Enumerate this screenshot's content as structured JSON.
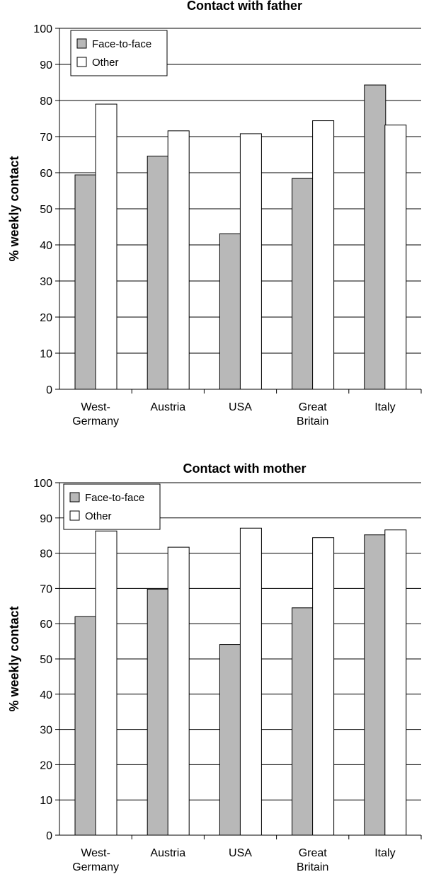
{
  "chart_data": [
    {
      "type": "bar",
      "title": "Contact with father",
      "ylabel": "% weekly contact",
      "xlabel": "",
      "ylim": [
        0,
        100
      ],
      "yticks": [
        0,
        10,
        20,
        30,
        40,
        50,
        60,
        70,
        80,
        90,
        100
      ],
      "grid": true,
      "legend_position": "top-left",
      "categories": [
        [
          "West-",
          "Germany"
        ],
        [
          "Austria"
        ],
        [
          "USA"
        ],
        [
          "Great",
          "Britain"
        ],
        [
          "Italy"
        ]
      ],
      "series": [
        {
          "name": "Face-to-face",
          "color": "#b8b8b8",
          "values": [
            59.4,
            64.6,
            43.1,
            58.4,
            84.3
          ]
        },
        {
          "name": "Other",
          "color": "#ffffff",
          "values": [
            79.0,
            71.6,
            70.8,
            74.4,
            73.2
          ]
        }
      ]
    },
    {
      "type": "bar",
      "title": "Contact with mother",
      "ylabel": "% weekly contact",
      "xlabel": "",
      "ylim": [
        0,
        100
      ],
      "yticks": [
        0,
        10,
        20,
        30,
        40,
        50,
        60,
        70,
        80,
        90,
        100
      ],
      "grid": true,
      "legend_position": "top-left",
      "categories": [
        [
          "West-",
          "Germany"
        ],
        [
          "Austria"
        ],
        [
          "USA"
        ],
        [
          "Great",
          "Britain"
        ],
        [
          "Italy"
        ]
      ],
      "series": [
        {
          "name": "Face-to-face",
          "color": "#b8b8b8",
          "values": [
            62.0,
            69.8,
            54.1,
            64.5,
            85.2
          ]
        },
        {
          "name": "Other",
          "color": "#ffffff",
          "values": [
            86.3,
            81.7,
            87.1,
            84.4,
            86.6
          ]
        }
      ]
    }
  ]
}
